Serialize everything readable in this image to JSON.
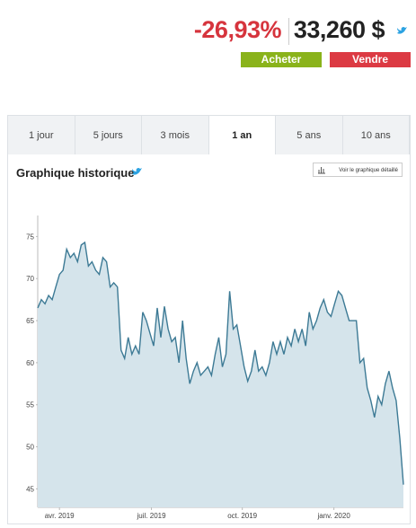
{
  "header": {
    "change": "-26,93%",
    "price": "33,260 $",
    "buy": "Acheter",
    "sell": "Vendre"
  },
  "tabs": {
    "items": [
      "1 jour",
      "5 jours",
      "3 mois",
      "1 an",
      "5 ans",
      "10 ans"
    ],
    "active": 3
  },
  "section": {
    "title": "Graphique historique",
    "detail_button": "Voir le graphique détaillé"
  },
  "chart": {
    "type": "line",
    "color": "#3d7a95",
    "fill": "#d5e4eb",
    "values": [
      66.5,
      67.5,
      67,
      68,
      67.5,
      69,
      70.5,
      71,
      73.5,
      72.5,
      73,
      72,
      74,
      74.3,
      71.5,
      72,
      71,
      70.5,
      72.5,
      72,
      69,
      69.5,
      69,
      61.5,
      60.5,
      63,
      61,
      62,
      61,
      66,
      65,
      63.5,
      62,
      66.5,
      63,
      66.7,
      64,
      62.5,
      63,
      60,
      65,
      60.5,
      57.5,
      59,
      60,
      58.5,
      59,
      59.5,
      58.5,
      61,
      63,
      59.5,
      61,
      68.5,
      64,
      64.5,
      62,
      59.5,
      57.8,
      59,
      61.5,
      59,
      59.5,
      58.5,
      60,
      62.5,
      61,
      62.5,
      61,
      63,
      62,
      64,
      62.5,
      64,
      62,
      66,
      64,
      65,
      66.5,
      67.5,
      66,
      65.5,
      67,
      68.5,
      68,
      66.5,
      65,
      65,
      65,
      60,
      60.5,
      57,
      55.5,
      53.5,
      56,
      55,
      57.5,
      59,
      57,
      55.5,
      51,
      45.5
    ],
    "ylim": [
      42.8,
      77.5
    ],
    "yticks": [
      45,
      50,
      55,
      60,
      65,
      70,
      75
    ],
    "xlim": [
      0,
      101
    ],
    "xticks": [
      {
        "value": 6,
        "label": "avr. 2019"
      },
      {
        "value": 31.4,
        "label": "juil. 2019"
      },
      {
        "value": 56.5,
        "label": "oct. 2019"
      },
      {
        "value": 81.8,
        "label": "janv. 2020"
      }
    ]
  }
}
